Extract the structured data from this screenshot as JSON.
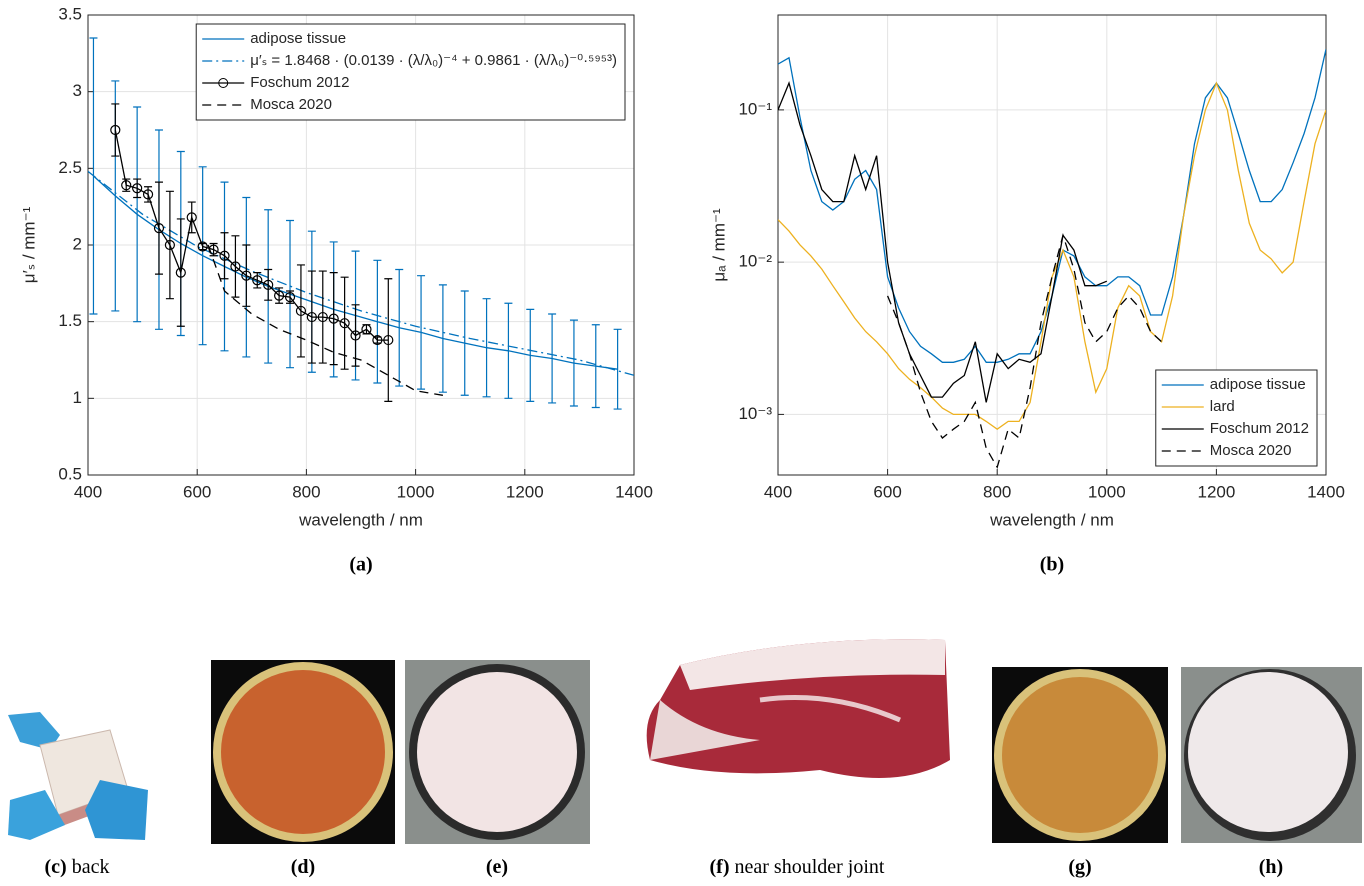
{
  "chart_data": [
    {
      "type": "line",
      "caption": "(a)",
      "xlabel": "wavelength / nm",
      "ylabel": "μ′ₛ / mm⁻¹",
      "xlim": [
        400,
        1400
      ],
      "xticks": [
        400,
        600,
        800,
        1000,
        1200,
        1400
      ],
      "ylim": [
        0.5,
        3.5
      ],
      "yticks": [
        0.5,
        1,
        1.5,
        2,
        2.5,
        3,
        3.5
      ],
      "log": false,
      "grid": true,
      "legend": "top-right",
      "series": [
        {
          "name": "adipose tissue",
          "color": "#0072bd",
          "dash": "solid",
          "x": [
            410,
            450,
            490,
            530,
            570,
            610,
            650,
            690,
            730,
            770,
            810,
            850,
            890,
            930,
            970,
            1010,
            1050,
            1090,
            1130,
            1170,
            1210,
            1250,
            1290,
            1330,
            1370
          ],
          "values": [
            2.45,
            2.32,
            2.2,
            2.1,
            2.01,
            1.93,
            1.86,
            1.79,
            1.73,
            1.68,
            1.63,
            1.58,
            1.54,
            1.5,
            1.46,
            1.43,
            1.39,
            1.36,
            1.33,
            1.31,
            1.28,
            1.26,
            1.23,
            1.21,
            1.19
          ],
          "errors": [
            0.9,
            0.75,
            0.7,
            0.65,
            0.6,
            0.58,
            0.55,
            0.52,
            0.5,
            0.48,
            0.46,
            0.44,
            0.42,
            0.4,
            0.38,
            0.37,
            0.35,
            0.34,
            0.32,
            0.31,
            0.3,
            0.29,
            0.28,
            0.27,
            0.26
          ]
        },
        {
          "name": "μ′ₛ = 1.8468 · (0.0139 · (λ/λ₀)⁻⁴ + 0.9861 · (λ/λ₀)⁻⁰·⁵⁹⁵³)",
          "color": "#0072bd",
          "dash": "dashdot",
          "x": [
            400,
            500,
            600,
            700,
            800,
            900,
            1000,
            1100,
            1200,
            1300,
            1400
          ],
          "values": [
            2.48,
            2.2,
            1.99,
            1.83,
            1.69,
            1.57,
            1.47,
            1.39,
            1.32,
            1.25,
            1.15
          ]
        },
        {
          "name": "Foschum 2012",
          "color": "#000000",
          "dash": "solid",
          "marker": "circle",
          "x": [
            450,
            470,
            490,
            510,
            530,
            550,
            570,
            590,
            610,
            630,
            650,
            670,
            690,
            710,
            730,
            750,
            770,
            790,
            810,
            830,
            850,
            870,
            890,
            910,
            930,
            950
          ],
          "values": [
            2.75,
            2.39,
            2.37,
            2.33,
            2.11,
            2.0,
            1.82,
            2.18,
            1.99,
            1.97,
            1.93,
            1.86,
            1.8,
            1.77,
            1.74,
            1.67,
            1.66,
            1.57,
            1.53,
            1.53,
            1.52,
            1.49,
            1.41,
            1.45,
            1.38,
            1.38
          ],
          "errors": [
            0.17,
            0.04,
            0.06,
            0.05,
            0.3,
            0.35,
            0.35,
            0.1,
            0.02,
            0.04,
            0.15,
            0.2,
            0.2,
            0.05,
            0.1,
            0.05,
            0.04,
            0.3,
            0.3,
            0.3,
            0.3,
            0.3,
            0.2,
            0.03,
            0.02,
            0.4
          ]
        },
        {
          "name": "Mosca 2020",
          "color": "#000000",
          "dash": "dashed",
          "x": [
            620,
            650,
            700,
            750,
            800,
            850,
            900,
            950,
            1000,
            1050
          ],
          "values": [
            2.0,
            1.7,
            1.55,
            1.45,
            1.38,
            1.3,
            1.25,
            1.15,
            1.05,
            1.02
          ]
        }
      ]
    },
    {
      "type": "line",
      "caption": "(b)",
      "xlabel": "wavelength / nm",
      "ylabel": "μₐ / mm⁻¹",
      "xlim": [
        400,
        1400
      ],
      "xticks": [
        400,
        600,
        800,
        1000,
        1200,
        1400
      ],
      "ylim": [
        0.0004,
        0.42
      ],
      "yticks": [
        {
          "value": 0.001,
          "label": "10⁻³"
        },
        {
          "value": 0.01,
          "label": "10⁻²"
        },
        {
          "value": 0.1,
          "label": "10⁻¹"
        }
      ],
      "log": true,
      "grid": true,
      "legend": "bottom-right",
      "series": [
        {
          "name": "adipose tissue",
          "color": "#0072bd",
          "dash": "solid",
          "x": [
            400,
            420,
            440,
            460,
            480,
            500,
            520,
            540,
            560,
            580,
            600,
            620,
            640,
            660,
            680,
            700,
            720,
            740,
            760,
            780,
            800,
            820,
            840,
            860,
            880,
            900,
            920,
            940,
            960,
            980,
            1000,
            1020,
            1040,
            1060,
            1080,
            1100,
            1120,
            1140,
            1160,
            1180,
            1200,
            1220,
            1240,
            1260,
            1280,
            1300,
            1320,
            1340,
            1360,
            1380,
            1400
          ],
          "values": [
            0.2,
            0.22,
            0.09,
            0.04,
            0.025,
            0.022,
            0.025,
            0.035,
            0.04,
            0.03,
            0.008,
            0.005,
            0.0035,
            0.0028,
            0.0025,
            0.0022,
            0.0022,
            0.0023,
            0.0028,
            0.0022,
            0.0022,
            0.0023,
            0.0025,
            0.0025,
            0.0035,
            0.006,
            0.012,
            0.011,
            0.008,
            0.007,
            0.007,
            0.008,
            0.008,
            0.007,
            0.0045,
            0.0045,
            0.008,
            0.02,
            0.06,
            0.12,
            0.15,
            0.12,
            0.07,
            0.04,
            0.025,
            0.025,
            0.03,
            0.045,
            0.07,
            0.12,
            0.25
          ]
        },
        {
          "name": "lard",
          "color": "#edb120",
          "dash": "solid",
          "x": [
            400,
            420,
            440,
            460,
            480,
            500,
            520,
            540,
            560,
            580,
            600,
            620,
            640,
            660,
            680,
            700,
            720,
            740,
            760,
            780,
            800,
            820,
            840,
            860,
            880,
            900,
            920,
            940,
            960,
            980,
            1000,
            1020,
            1040,
            1060,
            1080,
            1100,
            1120,
            1140,
            1160,
            1180,
            1200,
            1220,
            1240,
            1260,
            1280,
            1300,
            1320,
            1340,
            1360,
            1380,
            1400
          ],
          "values": [
            0.019,
            0.016,
            0.013,
            0.011,
            0.009,
            0.007,
            0.0055,
            0.0043,
            0.0035,
            0.003,
            0.0025,
            0.002,
            0.0017,
            0.0015,
            0.0013,
            0.0011,
            0.001,
            0.001,
            0.001,
            0.0009,
            0.0008,
            0.0009,
            0.0009,
            0.0012,
            0.003,
            0.008,
            0.012,
            0.008,
            0.003,
            0.0014,
            0.002,
            0.005,
            0.007,
            0.006,
            0.0035,
            0.003,
            0.006,
            0.02,
            0.05,
            0.1,
            0.15,
            0.1,
            0.04,
            0.018,
            0.012,
            0.0105,
            0.0085,
            0.01,
            0.025,
            0.06,
            0.1
          ]
        },
        {
          "name": "Foschum 2012",
          "color": "#000000",
          "dash": "solid",
          "x": [
            400,
            420,
            440,
            460,
            480,
            500,
            520,
            540,
            560,
            580,
            600,
            620,
            640,
            660,
            680,
            700,
            720,
            740,
            760,
            780,
            800,
            820,
            840,
            860,
            880,
            900,
            920,
            940,
            960,
            980,
            1000
          ],
          "values": [
            0.1,
            0.15,
            0.08,
            0.05,
            0.03,
            0.025,
            0.025,
            0.05,
            0.03,
            0.05,
            0.01,
            0.004,
            0.0025,
            0.0018,
            0.0013,
            0.0013,
            0.0016,
            0.0018,
            0.003,
            0.0012,
            0.0025,
            0.002,
            0.0023,
            0.0022,
            0.0025,
            0.006,
            0.015,
            0.012,
            0.007,
            0.007,
            0.0075
          ]
        },
        {
          "name": "Mosca 2020",
          "color": "#000000",
          "dash": "dashed",
          "x": [
            600,
            620,
            640,
            660,
            680,
            700,
            720,
            740,
            760,
            780,
            800,
            820,
            840,
            860,
            880,
            900,
            920,
            940,
            960,
            980,
            1000,
            1020,
            1040,
            1060,
            1080,
            1100
          ],
          "values": [
            0.006,
            0.004,
            0.0025,
            0.0014,
            0.0009,
            0.0007,
            0.0008,
            0.0009,
            0.0012,
            0.0006,
            0.00045,
            0.0008,
            0.0007,
            0.0015,
            0.004,
            0.008,
            0.015,
            0.009,
            0.004,
            0.003,
            0.0035,
            0.005,
            0.006,
            0.005,
            0.0035,
            0.003
          ]
        }
      ]
    }
  ],
  "photos": [
    {
      "tag": "(c)",
      "text": "back"
    },
    {
      "tag": "(d)"
    },
    {
      "tag": "(e)"
    },
    {
      "tag": "(f)",
      "text": "near shoulder joint"
    },
    {
      "tag": "(g)"
    },
    {
      "tag": "(h)"
    }
  ]
}
